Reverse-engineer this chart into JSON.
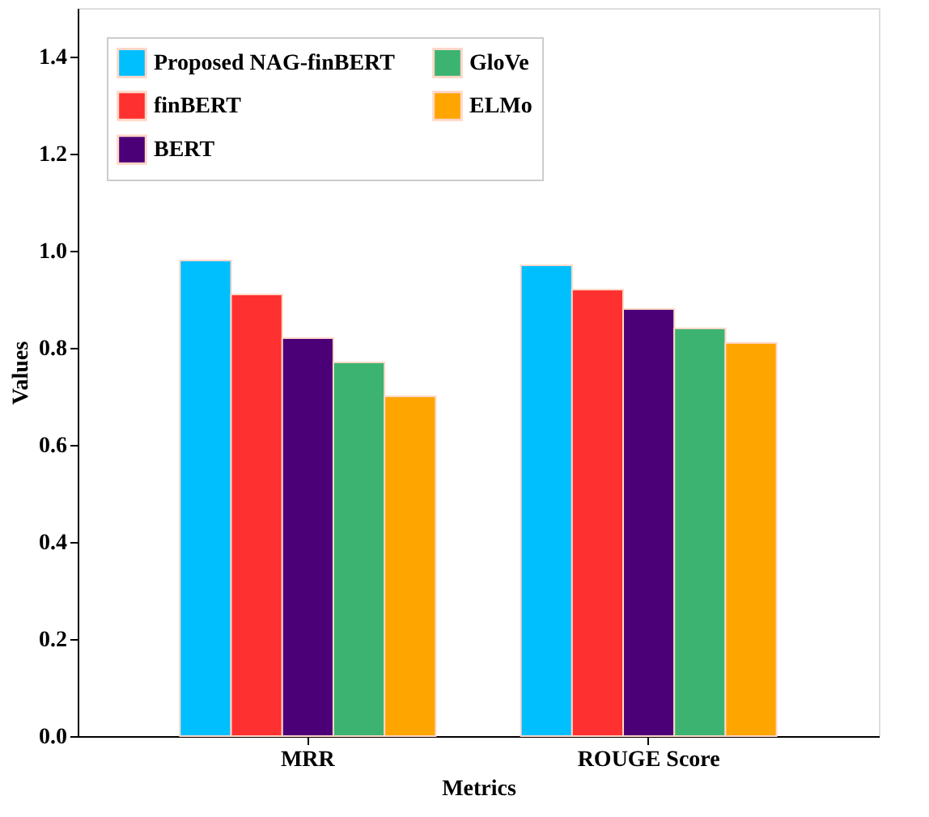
{
  "chart_data": {
    "type": "bar",
    "xlabel": "Metrics",
    "ylabel": "Values",
    "categories": [
      "MRR",
      "ROUGE Score"
    ],
    "series": [
      {
        "name": "Proposed NAG-finBERT",
        "color": "#00bfff",
        "values": [
          0.98,
          0.97
        ]
      },
      {
        "name": "finBERT",
        "color": "#ff3030",
        "values": [
          0.91,
          0.92
        ]
      },
      {
        "name": "BERT",
        "color": "#4b0078",
        "values": [
          0.82,
          0.88
        ]
      },
      {
        "name": "GloVe",
        "color": "#3cb371",
        "values": [
          0.77,
          0.84
        ]
      },
      {
        "name": "ELMo",
        "color": "#ffa500",
        "values": [
          0.7,
          0.81
        ]
      }
    ],
    "ylim": [
      0,
      1.5
    ],
    "yticks": [
      {
        "value": 0,
        "label": "0.0"
      },
      0.2,
      0.4,
      0.6,
      0.8,
      {
        "value": 1,
        "label": "1.0"
      },
      1.2,
      1.4
    ],
    "grid": false,
    "legend": "top left"
  }
}
